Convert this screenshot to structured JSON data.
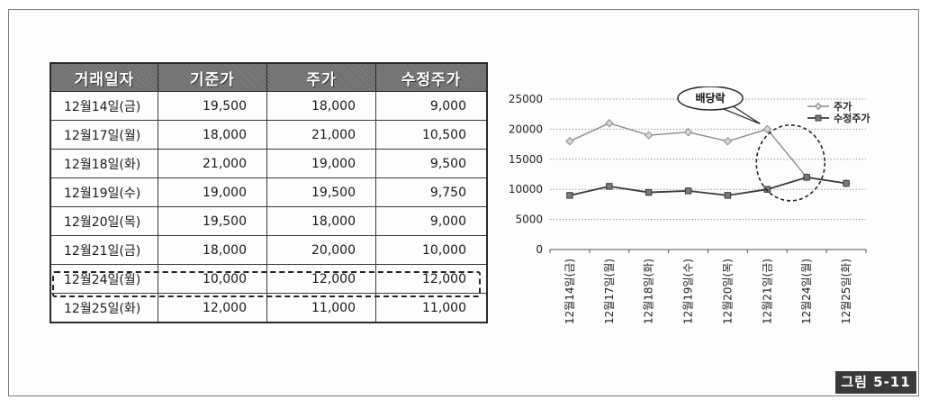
{
  "table": {
    "headers": [
      "거래일자",
      "기준가",
      "주가",
      "수정주가"
    ],
    "rows": [
      [
        "12월14일(금)",
        "19,500",
        "18,000",
        "9,000"
      ],
      [
        "12월17일(월)",
        "18,000",
        "21,000",
        "10,500"
      ],
      [
        "12월18일(화)",
        "21,000",
        "19,000",
        "9,500"
      ],
      [
        "12월19일(수)",
        "19,000",
        "19,500",
        "9,750"
      ],
      [
        "12월20일(목)",
        "19,500",
        "18,000",
        "9,000"
      ],
      [
        "12월21일(금)",
        "18,000",
        "20,000",
        "10,000"
      ],
      [
        "12월24일(월)",
        "10,000",
        "12,000",
        "12,000"
      ],
      [
        "12월25일(화)",
        "12,000",
        "11,000",
        "11,000"
      ]
    ],
    "highlighted_row": 6
  },
  "chart_data": {
    "type": "line",
    "categories": [
      "12월14일(금)",
      "12월17일(월)",
      "12월18일(화)",
      "12월19일(수)",
      "12월20일(목)",
      "12월21일(금)",
      "12월24일(월)",
      "12월25일(화)"
    ],
    "series": [
      {
        "name": "주가",
        "values": [
          18000,
          21000,
          19000,
          19500,
          18000,
          20000,
          12000,
          11000
        ],
        "color": "#8a8a8a",
        "marker": "diamond"
      },
      {
        "name": "수정주가",
        "values": [
          9000,
          10500,
          9500,
          9750,
          9000,
          10000,
          12000,
          11000
        ],
        "color": "#3a3a3a",
        "marker": "square"
      }
    ],
    "yticks": [
      0,
      5000,
      10000,
      15000,
      20000,
      25000
    ],
    "ylim": [
      0,
      25000
    ],
    "grid": true,
    "legend": "top-right",
    "annotation": {
      "text": "배당락",
      "target_category": "12월21일(금)"
    }
  },
  "figure_label": "그림 5-11"
}
